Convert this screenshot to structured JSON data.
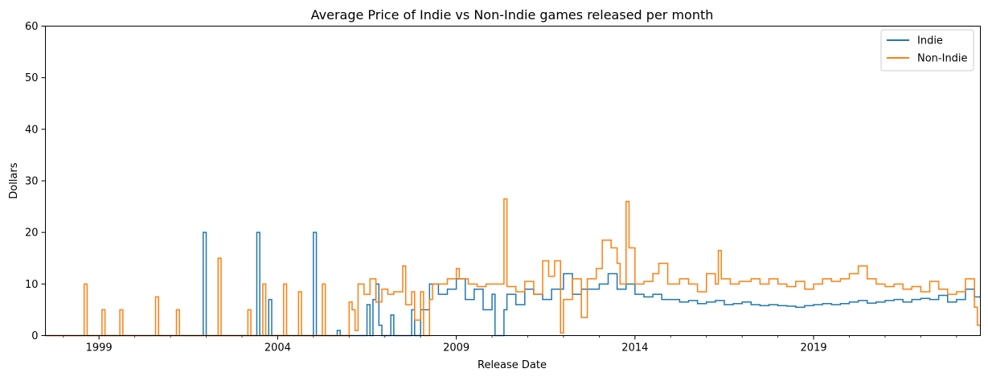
{
  "chart_data": {
    "type": "line",
    "title": "Average Price of Indie vs Non-Indie games released per month",
    "xlabel": "Release Date",
    "ylabel": "Dollars",
    "ylim": [
      0,
      60
    ],
    "xlim": [
      "1997-07",
      "2023-09"
    ],
    "yticks": [
      0,
      10,
      20,
      30,
      40,
      50,
      60
    ],
    "xticks": [
      {
        "date": "1999-01",
        "label": "1999"
      },
      {
        "date": "2004-01",
        "label": "2004"
      },
      {
        "date": "2009-01",
        "label": "2009"
      },
      {
        "date": "2014-01",
        "label": "2014"
      },
      {
        "date": "2019-01",
        "label": "2019"
      }
    ],
    "legend_position": "top-right",
    "series": [
      {
        "name": "Indie",
        "color": "#1f77b4",
        "points": [
          [
            "1997-07",
            0
          ],
          [
            "2001-12",
            20
          ],
          [
            "2002-01",
            0
          ],
          [
            "2003-06",
            20
          ],
          [
            "2003-07",
            0
          ],
          [
            "2003-10",
            7
          ],
          [
            "2003-11",
            0
          ],
          [
            "2005-01",
            20
          ],
          [
            "2005-02",
            0
          ],
          [
            "2005-09",
            1
          ],
          [
            "2005-10",
            0
          ],
          [
            "2006-07",
            6
          ],
          [
            "2006-08",
            0
          ],
          [
            "2006-09",
            7
          ],
          [
            "2006-10",
            10
          ],
          [
            "2006-11",
            2
          ],
          [
            "2006-12",
            0
          ],
          [
            "2007-03",
            4
          ],
          [
            "2007-04",
            0
          ],
          [
            "2007-09",
            0
          ],
          [
            "2007-10",
            5
          ],
          [
            "2007-11",
            0
          ],
          [
            "2008-01",
            5
          ],
          [
            "2008-04",
            10
          ],
          [
            "2008-07",
            8
          ],
          [
            "2008-10",
            9
          ],
          [
            "2009-01",
            11
          ],
          [
            "2009-04",
            7
          ],
          [
            "2009-07",
            9
          ],
          [
            "2009-10",
            5
          ],
          [
            "2010-01",
            8
          ],
          [
            "2010-02",
            0
          ],
          [
            "2010-05",
            5
          ],
          [
            "2010-06",
            8
          ],
          [
            "2010-09",
            6
          ],
          [
            "2010-12",
            9
          ],
          [
            "2011-03",
            8
          ],
          [
            "2011-06",
            7
          ],
          [
            "2011-09",
            9
          ],
          [
            "2012-01",
            12
          ],
          [
            "2012-04",
            8
          ],
          [
            "2012-07",
            9
          ],
          [
            "2012-10",
            9
          ],
          [
            "2013-01",
            10
          ],
          [
            "2013-04",
            12
          ],
          [
            "2013-07",
            9
          ],
          [
            "2013-10",
            10
          ],
          [
            "2014-01",
            8
          ],
          [
            "2014-04",
            7.5
          ],
          [
            "2014-07",
            8
          ],
          [
            "2014-10",
            7
          ],
          [
            "2015-01",
            7
          ],
          [
            "2015-04",
            6.5
          ],
          [
            "2015-07",
            6.8
          ],
          [
            "2015-10",
            6.2
          ],
          [
            "2016-01",
            6.5
          ],
          [
            "2016-04",
            6.8
          ],
          [
            "2016-07",
            6
          ],
          [
            "2016-10",
            6.2
          ],
          [
            "2017-01",
            6.5
          ],
          [
            "2017-04",
            6
          ],
          [
            "2017-07",
            5.8
          ],
          [
            "2017-10",
            6
          ],
          [
            "2018-01",
            5.8
          ],
          [
            "2018-04",
            5.7
          ],
          [
            "2018-07",
            5.5
          ],
          [
            "2018-10",
            5.8
          ],
          [
            "2019-01",
            6
          ],
          [
            "2019-04",
            6.2
          ],
          [
            "2019-07",
            6
          ],
          [
            "2019-10",
            6.2
          ],
          [
            "2020-01",
            6.5
          ],
          [
            "2020-04",
            6.8
          ],
          [
            "2020-07",
            6.3
          ],
          [
            "2020-10",
            6.5
          ],
          [
            "2021-01",
            6.8
          ],
          [
            "2021-04",
            7
          ],
          [
            "2021-07",
            6.5
          ],
          [
            "2021-10",
            7
          ],
          [
            "2022-01",
            7.2
          ],
          [
            "2022-04",
            7
          ],
          [
            "2022-07",
            7.8
          ],
          [
            "2022-10",
            6.5
          ],
          [
            "2023-01",
            7
          ],
          [
            "2023-04",
            9
          ],
          [
            "2023-07",
            7.5
          ]
        ]
      },
      {
        "name": "Non-Indie",
        "color": "#ff7f0e",
        "points": [
          [
            "1997-07",
            0
          ],
          [
            "1998-08",
            10
          ],
          [
            "1998-09",
            0
          ],
          [
            "1999-02",
            5
          ],
          [
            "1999-03",
            0
          ],
          [
            "1999-08",
            5
          ],
          [
            "1999-09",
            0
          ],
          [
            "2000-08",
            7.5
          ],
          [
            "2000-09",
            0
          ],
          [
            "2001-03",
            5
          ],
          [
            "2001-04",
            0
          ],
          [
            "2002-05",
            15
          ],
          [
            "2002-06",
            0
          ],
          [
            "2003-03",
            5
          ],
          [
            "2003-04",
            0
          ],
          [
            "2003-08",
            10
          ],
          [
            "2003-09",
            0
          ],
          [
            "2004-03",
            10
          ],
          [
            "2004-04",
            0
          ],
          [
            "2004-08",
            8.5
          ],
          [
            "2004-09",
            0
          ],
          [
            "2005-04",
            10
          ],
          [
            "2005-05",
            0
          ],
          [
            "2006-01",
            6.5
          ],
          [
            "2006-02",
            5
          ],
          [
            "2006-03",
            1
          ],
          [
            "2006-04",
            10
          ],
          [
            "2006-06",
            8
          ],
          [
            "2006-08",
            11
          ],
          [
            "2006-10",
            6.5
          ],
          [
            "2006-12",
            9
          ],
          [
            "2007-02",
            8
          ],
          [
            "2007-04",
            8.5
          ],
          [
            "2007-07",
            13.5
          ],
          [
            "2007-08",
            6
          ],
          [
            "2007-10",
            8.5
          ],
          [
            "2007-11",
            3
          ],
          [
            "2008-01",
            8.5
          ],
          [
            "2008-02",
            0
          ],
          [
            "2008-04",
            7
          ],
          [
            "2008-05",
            10
          ],
          [
            "2008-07",
            10
          ],
          [
            "2008-10",
            11
          ],
          [
            "2009-01",
            13
          ],
          [
            "2009-02",
            11
          ],
          [
            "2009-05",
            10
          ],
          [
            "2009-08",
            9.5
          ],
          [
            "2009-11",
            10
          ],
          [
            "2010-03",
            10
          ],
          [
            "2010-05",
            26.5
          ],
          [
            "2010-06",
            9.5
          ],
          [
            "2010-09",
            8.5
          ],
          [
            "2010-12",
            10.5
          ],
          [
            "2011-03",
            8
          ],
          [
            "2011-06",
            14.5
          ],
          [
            "2011-08",
            11.5
          ],
          [
            "2011-10",
            14.5
          ],
          [
            "2011-12",
            0.5
          ],
          [
            "2012-01",
            7
          ],
          [
            "2012-04",
            11
          ],
          [
            "2012-07",
            3.5
          ],
          [
            "2012-09",
            11
          ],
          [
            "2012-12",
            13
          ],
          [
            "2013-02",
            18.5
          ],
          [
            "2013-05",
            17
          ],
          [
            "2013-07",
            14
          ],
          [
            "2013-08",
            10
          ],
          [
            "2013-10",
            26
          ],
          [
            "2013-11",
            17
          ],
          [
            "2014-01",
            10
          ],
          [
            "2014-04",
            10.5
          ],
          [
            "2014-07",
            12
          ],
          [
            "2014-09",
            14
          ],
          [
            "2014-12",
            10
          ],
          [
            "2015-04",
            11
          ],
          [
            "2015-07",
            10
          ],
          [
            "2015-10",
            8.5
          ],
          [
            "2016-01",
            12
          ],
          [
            "2016-04",
            10
          ],
          [
            "2016-05",
            16.5
          ],
          [
            "2016-06",
            11
          ],
          [
            "2016-09",
            10
          ],
          [
            "2016-12",
            10.5
          ],
          [
            "2017-04",
            11
          ],
          [
            "2017-07",
            10
          ],
          [
            "2017-10",
            11
          ],
          [
            "2018-01",
            10
          ],
          [
            "2018-04",
            9.5
          ],
          [
            "2018-07",
            10.5
          ],
          [
            "2018-10",
            9
          ],
          [
            "2019-01",
            10
          ],
          [
            "2019-04",
            11
          ],
          [
            "2019-07",
            10.5
          ],
          [
            "2019-10",
            11
          ],
          [
            "2020-01",
            12
          ],
          [
            "2020-04",
            13.5
          ],
          [
            "2020-07",
            11
          ],
          [
            "2020-10",
            10
          ],
          [
            "2021-01",
            9.5
          ],
          [
            "2021-04",
            10
          ],
          [
            "2021-07",
            9
          ],
          [
            "2021-10",
            9.5
          ],
          [
            "2022-01",
            8.5
          ],
          [
            "2022-04",
            10.5
          ],
          [
            "2022-07",
            9
          ],
          [
            "2022-10",
            8
          ],
          [
            "2023-01",
            8.5
          ],
          [
            "2023-04",
            11
          ],
          [
            "2023-07",
            5.5
          ],
          [
            "2023-08",
            2
          ]
        ]
      }
    ]
  }
}
